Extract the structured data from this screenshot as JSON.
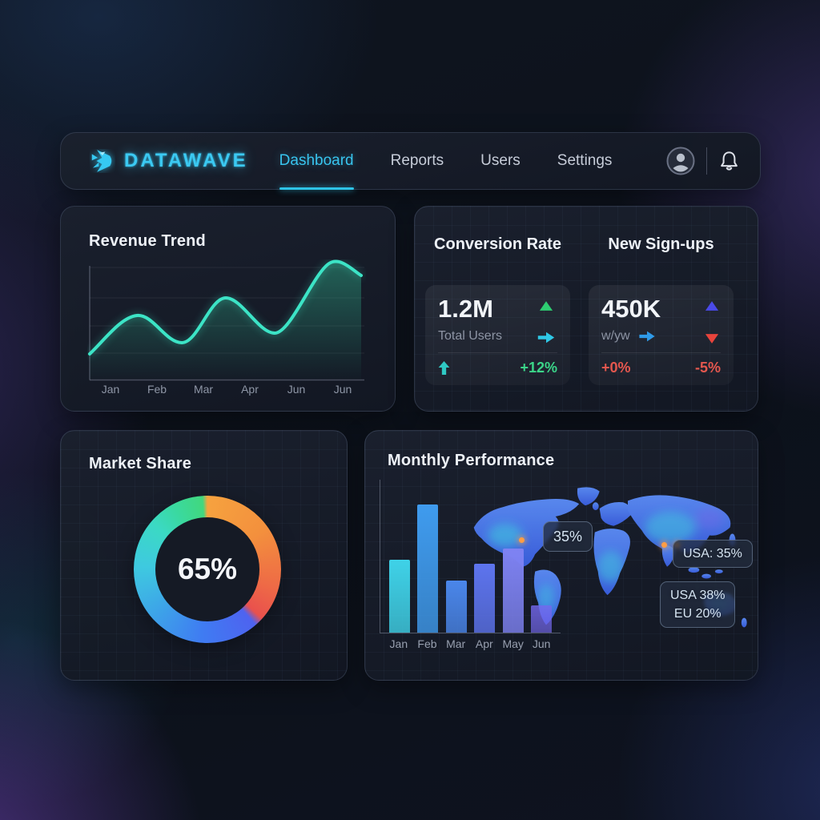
{
  "nav": {
    "brand": "DATAWAVE",
    "items": [
      {
        "label": "Dashboard",
        "active": true
      },
      {
        "label": "Reports",
        "active": false
      },
      {
        "label": "Users",
        "active": false
      },
      {
        "label": "Settings",
        "active": false
      }
    ],
    "icons": [
      "datawave-logo-icon",
      "avatar-icon",
      "bell-icon"
    ]
  },
  "revenue": {
    "title": "Revenue Trend"
  },
  "stats": {
    "left": {
      "header": "Conversion Rate",
      "value": "1.2M",
      "sublabel": "Total Users",
      "change": "+12%"
    },
    "right": {
      "header": "New Sign-ups",
      "value": "450K",
      "sublabel": "w/yw",
      "change_left": "+0%",
      "change_right": "-5%"
    }
  },
  "market": {
    "title": "Market Share",
    "center_label": "65%"
  },
  "monthly": {
    "title": "Monthly Performance",
    "map_labels": {
      "t1": "35%",
      "t2": "USA: 35%",
      "t3_line1": "USA 38%",
      "t3_line2": "EU 20%"
    }
  },
  "colors": {
    "accent_cyan": "#38c4ee",
    "positive_green": "#3bd689",
    "negative_red": "#e4574e",
    "line_teal": "#3ce8c8",
    "map_blue": "#4a7df0",
    "marker_orange": "#ff9d45"
  },
  "chart_data": [
    {
      "type": "line",
      "title": "Revenue Trend",
      "x": [
        "Jan",
        "Feb",
        "Mar",
        "Apr",
        "Jun",
        "Jun"
      ],
      "values": [
        22,
        48,
        33,
        60,
        38,
        95
      ],
      "note": "smooth wave line, ends dipping to ~88 after last peak; teal line with area fill fading down",
      "xlabel": "",
      "ylabel": "",
      "grid": true,
      "legend": false
    },
    {
      "type": "bar",
      "title": "Monthly Performance",
      "categories": [
        "Jan",
        "Feb",
        "Mar",
        "Apr",
        "May",
        "Jun"
      ],
      "values": [
        48,
        84,
        34,
        45,
        55,
        18
      ],
      "ylim": [
        0,
        100
      ],
      "bar_colors": [
        "#3fd2e8",
        "#3f9bee",
        "#4a86ea",
        "#5d74ee",
        "#7e82f2",
        "#7468ee"
      ],
      "annotations": [
        "35%",
        "USA: 35%",
        "USA 38%",
        "EU 20%"
      ],
      "xlabel": "",
      "ylabel": "",
      "legend": false
    },
    {
      "type": "pie",
      "title": "Market Share",
      "center_label": "65%",
      "values": [
        65,
        35
      ],
      "note": "donut ring rendered as conic gradient: orange/red right half-top, blue bottom, cyan-teal left, green top-left"
    }
  ]
}
